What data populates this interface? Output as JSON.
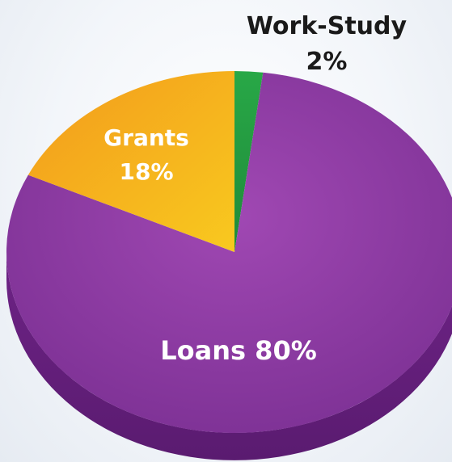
{
  "chart_data": {
    "type": "pie",
    "title": "",
    "slices": [
      {
        "label": "Work-Study",
        "value": 2,
        "value_label": "2%",
        "color": "#2bab4a"
      },
      {
        "label": "Loans",
        "value": 80,
        "value_label": "Loans 80%",
        "color": "#8e3aa3"
      },
      {
        "label": "Grants",
        "value": 18,
        "value_label": "18%",
        "color": "#f5a623"
      }
    ],
    "label_colors": {
      "work_study": "#1a1a1a",
      "grants": "#ffffff",
      "loans": "#ffffff"
    },
    "grants_name": "Grants",
    "legend": "none",
    "style": "3d-tilted"
  }
}
